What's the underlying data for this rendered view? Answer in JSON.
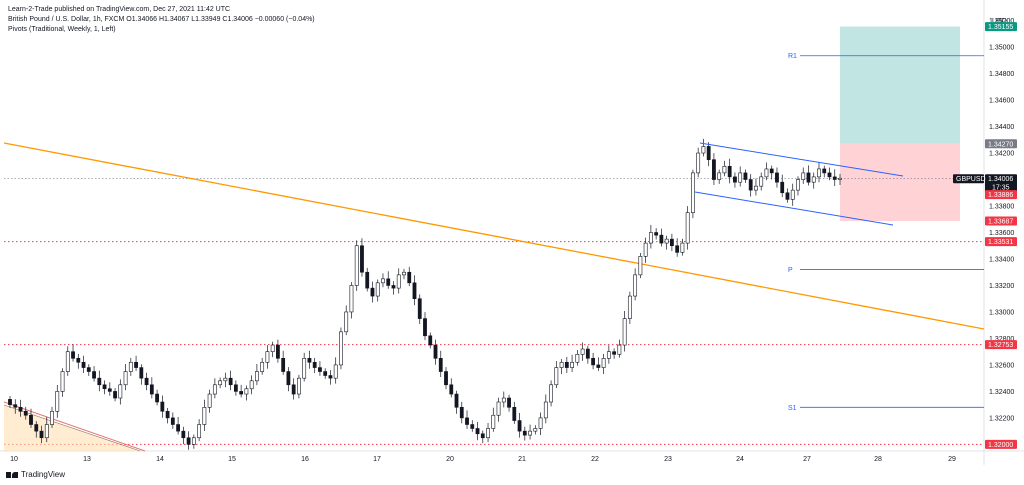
{
  "header": {
    "publisher": "Learn-2-Trade published on TradingView.com, Dec 27, 2021 11:42 UTC",
    "symbol_line": "British Pound / U.S. Dollar, 1h, FXCM  O1.34066  H1.34067  L1.33949  C1.34006  −0.00060 (−0.04%)",
    "pivots_line": "Pivots (Traditional, Weekly, 1, Left)"
  },
  "footer": {
    "brand": "TradingView"
  },
  "currency": "USD",
  "colors": {
    "up": "#131722",
    "down": "#131722",
    "trend": "#ff9800",
    "channel": "#2962ff",
    "pivot": "#2962ff",
    "support_dotted": "#f23645",
    "profit_zone": "#b2dfdb",
    "loss_zone": "#ffcdd2",
    "tag_green": "#089981",
    "tag_red": "#f23645",
    "tag_gray": "#787b86",
    "tag_dark": "#131722"
  },
  "chart_data": {
    "type": "candlestick",
    "symbol": "GBPUSD",
    "ylim": [
      1.3195,
      1.3525
    ],
    "y_ticks": [
      "1.35200",
      "1.35000",
      "1.34800",
      "1.34600",
      "1.34400",
      "1.34200",
      "1.34000",
      "1.33800",
      "1.33600",
      "1.33400",
      "1.33200",
      "1.33000",
      "1.32800",
      "1.32600",
      "1.32400",
      "1.32200",
      "1.32000"
    ],
    "x_ticks": [
      "10",
      "13",
      "14",
      "15",
      "16",
      "17",
      "20",
      "21",
      "22",
      "23",
      "24",
      "27",
      "28",
      "29"
    ],
    "price_tags": [
      {
        "label": "1.35155",
        "value": 1.35155,
        "color": "green"
      },
      {
        "label": "1.34270",
        "value": 1.3427,
        "color": "gray"
      },
      {
        "label": "1.34006",
        "value": 1.34006,
        "color": "dark",
        "symbol": "GBPUSD",
        "countdown": "17:35"
      },
      {
        "label": "1.33886",
        "value": 1.33886,
        "color": "red"
      },
      {
        "label": "1.33687",
        "value": 1.33687,
        "color": "red"
      },
      {
        "label": "1.33531",
        "value": 1.33531,
        "color": "red"
      },
      {
        "label": "1.32753",
        "value": 1.32753,
        "color": "red"
      },
      {
        "label": "1.32000",
        "value": 1.32,
        "color": "red"
      }
    ],
    "pivots": [
      {
        "label": "R1",
        "value": 1.34935
      },
      {
        "label": "P",
        "value": 1.3332
      },
      {
        "label": "S1",
        "value": 1.3228
      }
    ],
    "horizontal_levels": [
      1.33531,
      1.32753,
      1.32
    ],
    "position": {
      "entry": 1.3427,
      "target": 1.35155,
      "stop": 1.33687
    },
    "close": [
      1.323,
      1.3228,
      1.3225,
      1.3222,
      1.3215,
      1.321,
      1.3205,
      1.3215,
      1.3225,
      1.324,
      1.3255,
      1.327,
      1.3265,
      1.3262,
      1.3258,
      1.3255,
      1.325,
      1.3245,
      1.3242,
      1.324,
      1.3235,
      1.3245,
      1.3255,
      1.3262,
      1.3258,
      1.325,
      1.3245,
      1.3238,
      1.3232,
      1.3225,
      1.322,
      1.3215,
      1.321,
      1.3205,
      1.32,
      1.3205,
      1.3215,
      1.3228,
      1.3238,
      1.3245,
      1.3248,
      1.325,
      1.3245,
      1.324,
      1.3238,
      1.3242,
      1.3248,
      1.3255,
      1.3262,
      1.327,
      1.3275,
      1.3265,
      1.3255,
      1.3245,
      1.3238,
      1.325,
      1.3265,
      1.3262,
      1.3258,
      1.3255,
      1.3252,
      1.325,
      1.326,
      1.3285,
      1.33,
      1.332,
      1.335,
      1.333,
      1.3318,
      1.3312,
      1.3322,
      1.3325,
      1.332,
      1.3318,
      1.3328,
      1.333,
      1.3322,
      1.331,
      1.3295,
      1.3282,
      1.3275,
      1.3265,
      1.3255,
      1.3245,
      1.3238,
      1.3228,
      1.322,
      1.3215,
      1.3212,
      1.3208,
      1.3205,
      1.3212,
      1.3222,
      1.3232,
      1.3235,
      1.3228,
      1.3218,
      1.321,
      1.3207,
      1.321,
      1.3212,
      1.322,
      1.3232,
      1.3245,
      1.3258,
      1.3262,
      1.3258,
      1.3262,
      1.3268,
      1.3272,
      1.3265,
      1.326,
      1.3258,
      1.3265,
      1.327,
      1.3268,
      1.3275,
      1.3295,
      1.3312,
      1.3328,
      1.3342,
      1.3352,
      1.336,
      1.3358,
      1.3352,
      1.3355,
      1.335,
      1.3345,
      1.3352,
      1.3375,
      1.3405,
      1.342,
      1.3425,
      1.3415,
      1.34,
      1.3405,
      1.341,
      1.3402,
      1.3398,
      1.3405,
      1.34,
      1.3392,
      1.3395,
      1.3402,
      1.3408,
      1.3405,
      1.3398,
      1.339,
      1.3385,
      1.3392,
      1.34,
      1.3405,
      1.3398,
      1.3402,
      1.3408,
      1.3405,
      1.3402,
      1.34,
      1.3401
    ]
  }
}
